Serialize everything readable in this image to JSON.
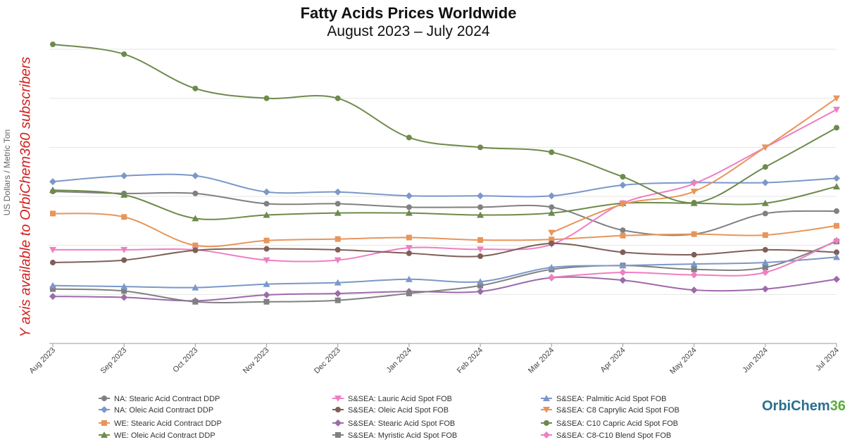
{
  "logo": {
    "text_a": "OrbiChem",
    "text_b": "360"
  },
  "note": "Y axis available to OrbiChem360 subscribers",
  "chart_data": {
    "type": "line",
    "title": "Fatty Acids Prices Worldwide",
    "subtitle": "August 2023 – July 2024",
    "ylabel": "US Dollars / Metric Ton",
    "xlabel": "",
    "ylim": [
      0,
      60
    ],
    "y_tick_labels_visible": false,
    "grid": "horizontal",
    "legend_position": "bottom",
    "categories": [
      "Aug 2023",
      "Sep 2023",
      "Oct 2023",
      "Nov 2023",
      "Dec 2023",
      "Jan 2024",
      "Feb 2024",
      "Mar 2024",
      "Apr 2024",
      "May 2024",
      "Jun 2024",
      "Jul 2024"
    ],
    "series": [
      {
        "name": "NA: Stearic Acid Contract DDP",
        "color": "#808080",
        "marker": "circle",
        "values": [
          31.0,
          30.6,
          30.6,
          28.5,
          28.5,
          27.8,
          27.8,
          27.8,
          23.1,
          22.3,
          26.5,
          27.0
        ]
      },
      {
        "name": "NA: Oleic Acid Contract DDP",
        "color": "#7b98c8",
        "marker": "diamond",
        "values": [
          33.0,
          34.2,
          34.2,
          30.9,
          30.9,
          30.1,
          30.1,
          30.1,
          32.3,
          32.8,
          32.8,
          33.7
        ]
      },
      {
        "name": "WE: Stearic Acid Contract DDP",
        "color": "#e8955a",
        "marker": "square",
        "values": [
          26.5,
          25.8,
          20.0,
          21.0,
          21.3,
          21.6,
          21.1,
          21.2,
          22.0,
          22.3,
          22.1,
          24.0
        ]
      },
      {
        "name": "WE: Oleic Acid Contract DDP",
        "color": "#6e8a4c",
        "marker": "triangle-up",
        "values": [
          31.3,
          30.3,
          25.5,
          26.2,
          26.6,
          26.6,
          26.2,
          26.6,
          28.6,
          28.6,
          28.6,
          32.0
        ]
      },
      {
        "name": "S&SEA: Lauric Acid Spot FOB",
        "color": "#ee7fc2",
        "marker": "triangle-down",
        "values": [
          19.1,
          19.1,
          19.1,
          17.0,
          17.0,
          19.5,
          19.2,
          20.2,
          28.6,
          32.6,
          40.0,
          47.7
        ]
      },
      {
        "name": "S&SEA: Oleic Acid Spot FOB",
        "color": "#7f5f58",
        "marker": "circle",
        "values": [
          16.5,
          17.0,
          19.0,
          19.3,
          19.1,
          18.4,
          17.8,
          20.4,
          18.6,
          18.1,
          19.1,
          18.6
        ]
      },
      {
        "name": "S&SEA: Stearic Acid Spot FOB",
        "color": "#9d6aaa",
        "marker": "diamond",
        "values": [
          9.6,
          9.4,
          8.7,
          9.9,
          10.2,
          10.6,
          10.6,
          13.4,
          12.9,
          10.9,
          11.1,
          13.1
        ]
      },
      {
        "name": "S&SEA: Myristic Acid Spot FOB",
        "color": "#808080",
        "marker": "square",
        "values": [
          11.1,
          10.7,
          8.5,
          8.5,
          8.8,
          10.2,
          11.8,
          15.1,
          15.9,
          15.1,
          15.5,
          20.8
        ]
      },
      {
        "name": "S&SEA: Palmitic Acid Spot FOB",
        "color": "#7b98c8",
        "marker": "triangle-up",
        "values": [
          11.8,
          11.6,
          11.4,
          12.1,
          12.4,
          13.1,
          12.6,
          15.5,
          15.9,
          16.2,
          16.5,
          17.6
        ]
      },
      {
        "name": "S&SEA: C8 Caprylic Acid Spot FOB",
        "color": "#e8955a",
        "marker": "triangle-down",
        "values": [
          null,
          null,
          null,
          null,
          null,
          null,
          null,
          22.6,
          28.4,
          31.0,
          40.0,
          50.0
        ]
      },
      {
        "name": "S&SEA: C10 Capric Acid Spot FOB",
        "color": "#6e8a4c",
        "marker": "circle",
        "values": [
          61.0,
          59.0,
          52.0,
          50.0,
          50.0,
          42.0,
          40.0,
          39.0,
          34.0,
          28.7,
          36.0,
          44.0
        ]
      },
      {
        "name": "S&SEA: C8-C10 Blend Spot FOB",
        "color": "#ee7fc2",
        "marker": "diamond",
        "values": [
          null,
          null,
          null,
          null,
          null,
          null,
          null,
          13.5,
          14.5,
          14.0,
          14.5,
          21.0
        ]
      }
    ]
  }
}
